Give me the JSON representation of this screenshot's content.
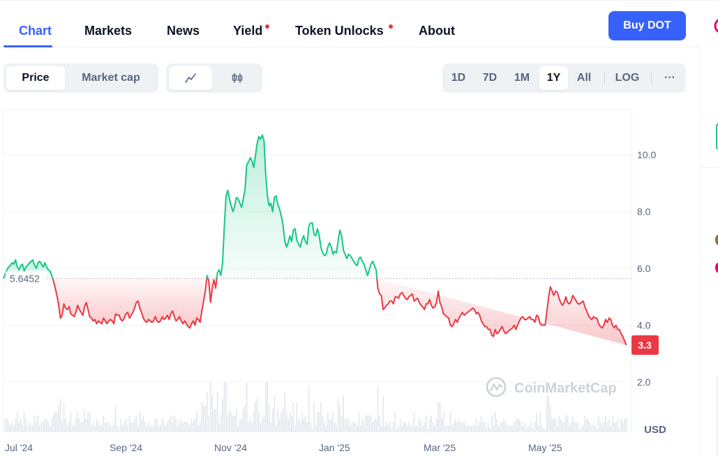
{
  "tabs": [
    {
      "label": "Chart",
      "active": true
    },
    {
      "label": "Markets"
    },
    {
      "label": "News"
    },
    {
      "label": "Yield",
      "dot": true
    },
    {
      "label": "Token Unlocks",
      "dot": true
    },
    {
      "label": "About"
    }
  ],
  "buy_button": "Buy DOT",
  "chart_mode": {
    "price": "Price",
    "market_cap": "Market cap",
    "selected": "Price"
  },
  "chart_style": {
    "line_icon": "line-chart-icon",
    "candle_icon": "candlestick-icon",
    "selected": "line"
  },
  "ranges": [
    "1D",
    "7D",
    "1M",
    "1Y",
    "All"
  ],
  "selected_range": "1Y",
  "log_label": "LOG",
  "more_label": "···",
  "watermark": "CoinMarketCap",
  "colors": {
    "accent": "#3861fb",
    "up": "#16c784",
    "down": "#ea3943"
  },
  "chart_data": {
    "type": "area",
    "currency": "USD",
    "baseline": 5.6452,
    "baseline_label": "5.6452",
    "current_price": 3.3,
    "current_label": "3.3",
    "yticks": [
      {
        "value": 2.0,
        "label": "2.0"
      },
      {
        "value": 4.0,
        "label": "4.0"
      },
      {
        "value": 6.0,
        "label": "6.0"
      },
      {
        "value": 8.0,
        "label": "8.0"
      },
      {
        "value": 10.0,
        "label": "10.0"
      }
    ],
    "xticks": [
      "Jul '24",
      "Sep '24",
      "Nov '24",
      "Jan '25",
      "Mar '25",
      "May '25"
    ],
    "ylim": [
      0.25,
      11.6
    ],
    "grid": true,
    "series": [
      {
        "t": [
          0,
          1,
          2,
          3,
          4,
          5,
          6,
          7,
          8,
          9,
          10,
          11,
          12,
          13,
          14,
          15,
          16,
          17,
          18,
          19,
          20,
          21,
          22,
          23,
          24,
          25,
          26,
          27,
          28,
          29,
          30,
          31,
          32,
          33,
          34,
          35,
          36,
          37,
          38,
          39,
          40,
          41,
          42,
          43,
          44,
          45,
          46,
          47,
          48,
          49,
          50,
          51,
          52,
          53,
          54,
          55,
          56,
          57,
          58,
          59,
          60,
          61,
          62,
          63,
          64,
          65,
          66,
          67,
          68,
          69,
          70,
          71,
          72,
          73,
          74,
          75,
          76,
          77,
          78,
          79,
          80,
          81,
          82,
          83,
          84,
          85,
          86,
          87,
          88,
          89,
          90,
          91,
          92,
          93,
          94,
          95,
          96,
          97,
          98,
          99,
          100,
          101,
          102,
          103,
          104,
          105,
          106,
          107,
          108,
          109,
          110,
          111,
          112,
          113,
          114,
          115,
          116,
          117,
          118,
          119,
          120,
          121,
          122,
          123,
          124,
          125,
          126,
          127,
          128,
          129,
          130,
          131,
          132,
          133,
          134,
          135,
          136,
          137,
          138,
          139,
          140,
          141,
          142,
          143,
          144,
          145,
          146,
          147,
          148,
          149,
          150,
          151,
          152,
          153,
          154,
          155,
          156,
          157,
          158,
          159,
          160,
          161,
          162,
          163,
          164,
          165,
          166,
          167,
          168,
          169,
          170,
          171,
          172,
          173,
          174,
          175,
          176,
          177,
          178,
          179,
          180,
          181,
          182,
          183,
          184,
          185,
          186,
          187,
          188,
          189,
          190,
          191,
          192,
          193,
          194,
          195,
          196,
          197,
          198,
          199,
          200,
          201,
          202,
          203,
          204,
          205,
          206,
          207,
          208,
          209,
          210,
          211,
          212,
          213,
          214,
          215,
          216,
          217,
          218,
          219,
          220,
          221,
          222,
          223,
          224,
          225,
          226,
          227,
          228,
          229,
          230,
          231,
          232,
          233,
          234,
          235,
          236,
          237,
          238,
          239,
          240,
          241,
          242,
          243,
          244,
          245,
          246,
          247,
          248,
          249,
          250,
          251,
          252,
          253,
          254,
          255,
          256,
          257,
          258,
          259,
          260,
          261,
          262,
          263,
          264,
          265,
          266,
          267,
          268,
          269,
          270,
          271,
          272,
          273,
          274,
          275,
          276,
          277,
          278,
          279,
          280,
          281,
          282,
          283,
          284,
          285,
          286,
          287,
          288,
          289,
          290,
          291,
          292,
          293,
          294,
          295,
          296,
          297,
          298,
          299,
          300,
          301,
          302,
          303,
          304,
          305,
          306,
          307,
          308,
          309,
          310,
          311,
          312,
          313,
          314,
          315,
          316,
          317,
          318,
          319,
          320,
          321,
          322,
          323,
          324,
          325,
          326,
          327,
          328,
          329,
          330,
          331,
          332,
          333,
          334,
          335,
          336,
          337,
          338,
          339,
          340,
          341,
          342,
          343,
          344,
          345,
          346,
          347,
          348,
          349,
          350,
          351,
          352,
          353,
          354,
          355,
          356,
          357,
          358,
          359,
          360,
          361,
          362,
          363,
          364
        ],
        "price": [
          5.65,
          5.8,
          5.95,
          6.05,
          6.1,
          6.2,
          6.15,
          6.3,
          6.05,
          5.95,
          6.1,
          6.15,
          5.9,
          6.05,
          6.1,
          6.2,
          6.25,
          6.3,
          6.1,
          6.0,
          6.2,
          6.25,
          6.15,
          6.05,
          6.2,
          6.05,
          5.95,
          5.9,
          5.75,
          5.55,
          5.3,
          5.05,
          4.7,
          4.25,
          4.35,
          4.75,
          4.6,
          4.55,
          4.65,
          4.4,
          4.35,
          4.3,
          4.45,
          4.7,
          4.55,
          4.45,
          4.35,
          4.65,
          4.8,
          4.55,
          4.3,
          4.25,
          4.15,
          4.2,
          4.05,
          4.15,
          4.1,
          4.05,
          4.25,
          4.15,
          4.05,
          4.15,
          4.2,
          4.15,
          4.05,
          4.4,
          4.35,
          4.35,
          4.2,
          4.15,
          4.25,
          4.4,
          4.45,
          4.25,
          4.35,
          4.45,
          4.6,
          4.8,
          4.85,
          4.6,
          4.45,
          4.25,
          4.15,
          4.1,
          4.2,
          4.15,
          4.1,
          4.15,
          4.3,
          4.15,
          4.1,
          4.15,
          4.3,
          4.2,
          4.25,
          4.35,
          4.2,
          4.4,
          4.5,
          4.3,
          4.15,
          4.2,
          4.3,
          4.15,
          4.05,
          4.15,
          4.05,
          3.95,
          3.9,
          4.05,
          4.15,
          4.0,
          4.25,
          4.2,
          4.1,
          4.5,
          4.85,
          5.2,
          5.75,
          5.55,
          4.8,
          5.3,
          5.6,
          5.3,
          5.85,
          5.95,
          5.75,
          6.2,
          7.5,
          8.55,
          8.75,
          8.45,
          8.2,
          8.0,
          8.2,
          8.5,
          8.45,
          8.3,
          8.15,
          8.45,
          8.8,
          9.65,
          9.75,
          9.9,
          9.8,
          9.55,
          9.95,
          10.4,
          10.65,
          10.55,
          10.7,
          10.5,
          9.3,
          8.55,
          8.2,
          8.3,
          8.0,
          8.5,
          8.55,
          8.25,
          8.1,
          7.85,
          7.55,
          7.0,
          6.75,
          6.9,
          7.15,
          6.95,
          7.35,
          7.4,
          7.0,
          6.85,
          6.75,
          7.0,
          7.15,
          6.95,
          6.85,
          7.5,
          7.6,
          7.6,
          7.2,
          7.15,
          7.4,
          7.15,
          6.75,
          6.55,
          6.45,
          6.5,
          6.75,
          6.9,
          6.75,
          6.5,
          6.6,
          6.55,
          7.0,
          7.35,
          7.15,
          6.65,
          6.5,
          6.35,
          6.5,
          6.45,
          6.35,
          6.25,
          6.15,
          6.1,
          6.35,
          6.4,
          6.25,
          6.15,
          5.95,
          5.75,
          5.95,
          6.15,
          6.25,
          6.1,
          5.95,
          5.3,
          5.1,
          5.05,
          4.55,
          4.6,
          4.7,
          4.75,
          4.85,
          4.85,
          4.75,
          5.0,
          5.0,
          4.95,
          5.1,
          5.15,
          5.05,
          4.95,
          4.9,
          5.0,
          5.05,
          5.1,
          4.85,
          4.9,
          4.95,
          4.8,
          4.7,
          4.65,
          4.55,
          4.75,
          4.75,
          4.9,
          4.7,
          4.6,
          4.65,
          4.8,
          5.2,
          4.8,
          4.65,
          4.4,
          4.35,
          4.3,
          4.25,
          4.0,
          3.95,
          4.05,
          4.2,
          4.1,
          4.25,
          4.35,
          4.45,
          4.35,
          4.4,
          4.45,
          4.5,
          4.55,
          4.6,
          4.55,
          4.4,
          4.45,
          4.35,
          4.15,
          4.05,
          3.95,
          3.95,
          3.85,
          3.85,
          3.65,
          3.6,
          3.85,
          3.7,
          3.75,
          3.85,
          3.95,
          3.8,
          3.7,
          3.75,
          3.8,
          3.85,
          3.9,
          4.0,
          3.85,
          4.0,
          4.15,
          4.25,
          4.3,
          4.2,
          4.2,
          4.25,
          4.3,
          4.2,
          4.2,
          4.1,
          4.35,
          4.3,
          4.05,
          4.0,
          4.0,
          4.0,
          4.5,
          5.0,
          5.35,
          5.2,
          5.05,
          5.2,
          5.15,
          4.95,
          4.8,
          4.7,
          4.8,
          5.0,
          4.8,
          4.75,
          4.85,
          5.05,
          4.95,
          4.85,
          4.75,
          4.75,
          4.8,
          4.85,
          4.65,
          4.5,
          4.35,
          4.25,
          4.2,
          4.3,
          4.25,
          4.25,
          4.05,
          3.95,
          3.9,
          4.0,
          4.2,
          4.1,
          4.25,
          4.2,
          4.0,
          3.9,
          4.0,
          3.85,
          3.85,
          3.7,
          3.6,
          3.45,
          3.3
        ]
      }
    ]
  }
}
